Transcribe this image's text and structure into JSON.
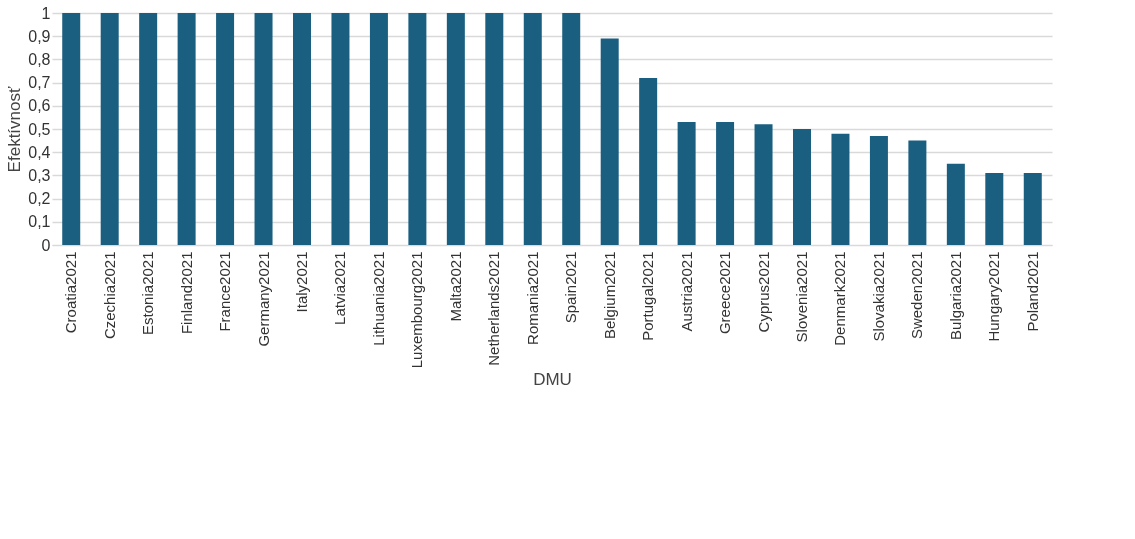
{
  "chart_data": {
    "type": "bar",
    "xlabel": "DMU",
    "ylabel": "Efektívnosť",
    "categories": [
      "Croatia2021",
      "Czechia2021",
      "Estonia2021",
      "Finland2021",
      "France2021",
      "Germany2021",
      "Italy2021",
      "Latvia2021",
      "Lithuania2021",
      "Luxembourg2021",
      "Malta2021",
      "Netherlands2021",
      "Romania2021",
      "Spain2021",
      "Belgium2021",
      "Portugal2021",
      "Austria2021",
      "Greece2021",
      "Cyprus2021",
      "Slovenia2021",
      "Denmark2021",
      "Slovakia2021",
      "Sweden2021",
      "Bulgaria2021",
      "Hungary2021",
      "Poland2021"
    ],
    "values": [
      1,
      1,
      1,
      1,
      1,
      1,
      1,
      1,
      1,
      1,
      1,
      1,
      1,
      1,
      0.89,
      0.72,
      0.53,
      0.53,
      0.52,
      0.5,
      0.48,
      0.47,
      0.45,
      0.35,
      0.31,
      0.31
    ],
    "color": "#1a5f80",
    "ylim": [
      0,
      1
    ],
    "yticks": [
      0,
      {
        "value": 0.1,
        "label": "0,1"
      },
      {
        "value": 0.2,
        "label": "0,2"
      },
      {
        "value": 0.3,
        "label": "0,3"
      },
      {
        "value": 0.4,
        "label": "0,4"
      },
      {
        "value": 0.5,
        "label": "0,5"
      },
      {
        "value": 0.6,
        "label": "0,6"
      },
      {
        "value": 0.7,
        "label": "0,7"
      },
      {
        "value": 0.8,
        "label": "0,8"
      },
      {
        "value": 0.9,
        "label": "0,9"
      },
      1
    ],
    "grid": "y"
  }
}
